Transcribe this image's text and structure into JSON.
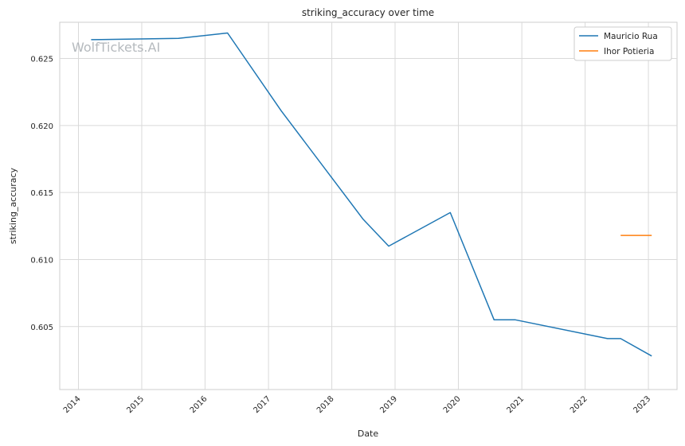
{
  "watermark": "WolfTickets.AI",
  "chart_data": {
    "type": "line",
    "title": "striking_accuracy over time",
    "xlabel": "Date",
    "ylabel": "striking_accuracy",
    "x_ticks": [
      "2014",
      "2015",
      "2016",
      "2017",
      "2018",
      "2019",
      "2020",
      "2021",
      "2022",
      "2023"
    ],
    "y_ticks": [
      "0.605",
      "0.610",
      "0.615",
      "0.620",
      "0.625"
    ],
    "xlim": [
      "2013-09-15",
      "2023-06-15"
    ],
    "ylim": [
      0.6003,
      0.6277
    ],
    "grid": true,
    "legend_position": "top-right",
    "series": [
      {
        "name": "Mauricio Rua",
        "color": "#1f77b4",
        "points": [
          {
            "x": "2014-03-15",
            "y": 0.6264
          },
          {
            "x": "2015-08-01",
            "y": 0.6265
          },
          {
            "x": "2016-05-10",
            "y": 0.6269
          },
          {
            "x": "2017-03-15",
            "y": 0.6211
          },
          {
            "x": "2018-07-01",
            "y": 0.613
          },
          {
            "x": "2018-11-25",
            "y": 0.611
          },
          {
            "x": "2019-11-15",
            "y": 0.6135
          },
          {
            "x": "2020-07-25",
            "y": 0.6055
          },
          {
            "x": "2020-11-25",
            "y": 0.6055
          },
          {
            "x": "2022-05-10",
            "y": 0.6041
          },
          {
            "x": "2022-07-25",
            "y": 0.6041
          },
          {
            "x": "2023-01-20",
            "y": 0.6028
          }
        ]
      },
      {
        "name": "Ihor Potieria",
        "color": "#ff7f0e",
        "points": [
          {
            "x": "2022-07-25",
            "y": 0.6118
          },
          {
            "x": "2023-01-20",
            "y": 0.6118
          }
        ]
      }
    ]
  }
}
